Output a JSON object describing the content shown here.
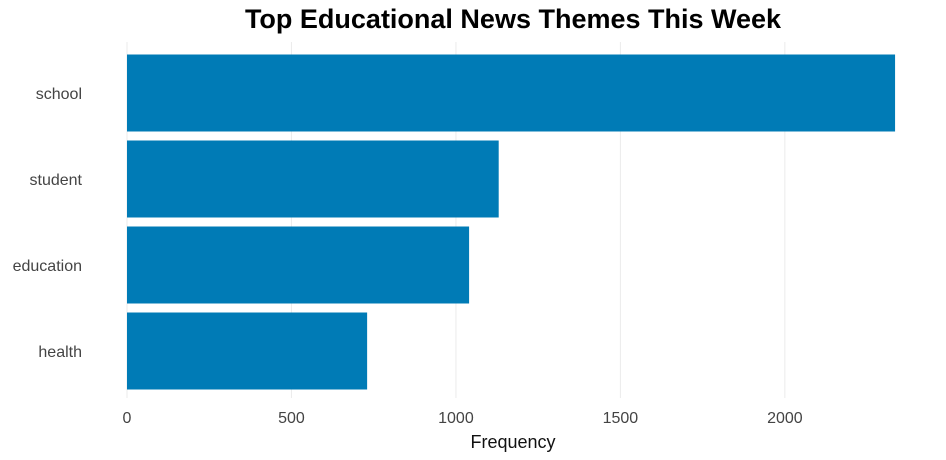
{
  "chart_data": {
    "type": "bar",
    "orientation": "horizontal",
    "title": "Top Educational News Themes This Week",
    "xlabel": "Frequency",
    "ylabel": "",
    "categories": [
      "school",
      "student",
      "education",
      "health"
    ],
    "values": [
      2335,
      1130,
      1040,
      730
    ],
    "xlim": [
      0,
      2350
    ],
    "xticks": [
      0,
      500,
      1000,
      1500,
      2000
    ],
    "xtick_labels": [
      "0",
      "500",
      "1000",
      "1500",
      "2000"
    ],
    "bar_color": "#007bb6",
    "grid": true,
    "legend": "none"
  }
}
